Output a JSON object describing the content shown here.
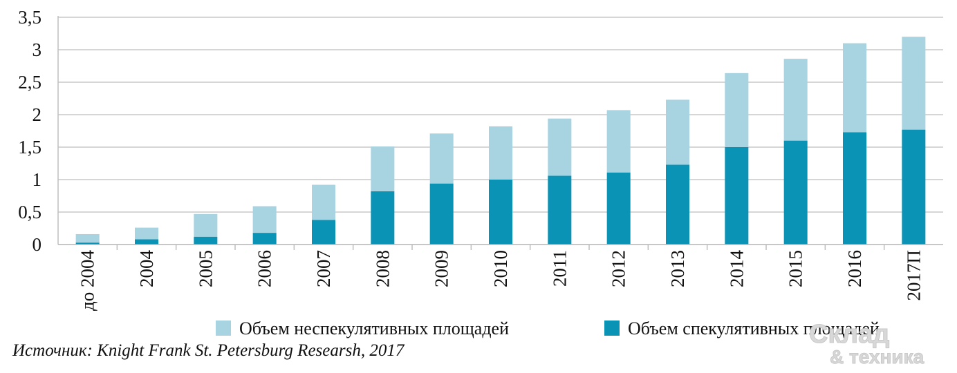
{
  "chart_data": {
    "type": "bar",
    "stacked": true,
    "categories": [
      "до 2004",
      "2004",
      "2005",
      "2006",
      "2007",
      "2008",
      "2009",
      "2010",
      "2011",
      "2012",
      "2013",
      "2014",
      "2015",
      "2016",
      "2017П"
    ],
    "series": [
      {
        "name": "Объем спекулятивных площадей",
        "color": "#0b93b5",
        "values": [
          0.03,
          0.08,
          0.12,
          0.18,
          0.38,
          0.82,
          0.94,
          1.0,
          1.06,
          1.11,
          1.23,
          1.5,
          1.6,
          1.73,
          1.77
        ]
      },
      {
        "name": "Объем неспекулятивных площадей",
        "color": "#a8d3e0",
        "values": [
          0.13,
          0.18,
          0.35,
          0.41,
          0.54,
          0.69,
          0.77,
          0.82,
          0.88,
          0.96,
          1.0,
          1.14,
          1.26,
          1.37,
          1.43
        ]
      }
    ],
    "y_ticks": [
      "0",
      "0,5",
      "1",
      "1,5",
      "2",
      "2,5",
      "3",
      "3,5"
    ],
    "ylim": [
      0,
      3.5
    ],
    "grid": true,
    "legend_position": "bottom"
  },
  "source": "Источник: Knight Frank St. Petersburg Researsh, 2017",
  "watermark": {
    "line1": "Склад",
    "line2": "& техника"
  }
}
